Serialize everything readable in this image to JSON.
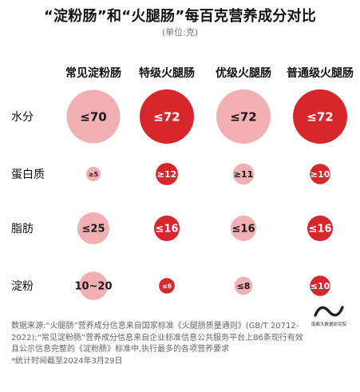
{
  "title": "“淀粉肠”和“火腿肠”每百克营养成分对比",
  "unit_label": "(单位:克)",
  "colors": {
    "light": "#f2b0b4",
    "dark": "#d7262c",
    "text_dark": "#1a1a1a",
    "text_light": "#ffffff"
  },
  "chart_data": {
    "type": "bubble-matrix",
    "columns": [
      "常见淀粉肠",
      "特级火腿肠",
      "优级火腿肠",
      "普通级火腿肠"
    ],
    "rows": [
      "水分",
      "蛋白质",
      "脂肪",
      "淀粉"
    ],
    "cells": [
      [
        {
          "label": "≤70",
          "value": 70,
          "style": "light"
        },
        {
          "label": "≤72",
          "value": 72,
          "style": "dark"
        },
        {
          "label": "≤72",
          "value": 72,
          "style": "light"
        },
        {
          "label": "≤72",
          "value": 72,
          "style": "dark"
        }
      ],
      [
        {
          "label": "≥5",
          "value": 5,
          "style": "light"
        },
        {
          "label": "≥12",
          "value": 12,
          "style": "dark"
        },
        {
          "label": "≥11",
          "value": 11,
          "style": "light"
        },
        {
          "label": "≥10",
          "value": 10,
          "style": "dark"
        }
      ],
      [
        {
          "label": "≤25",
          "value": 25,
          "style": "light"
        },
        {
          "label": "≤16",
          "value": 16,
          "style": "dark"
        },
        {
          "label": "≤16",
          "value": 16,
          "style": "light"
        },
        {
          "label": "≤16",
          "value": 16,
          "style": "dark"
        }
      ],
      [
        {
          "label": "10~20",
          "value": 20,
          "style": "light"
        },
        {
          "label": "≤6",
          "value": 6,
          "style": "dark"
        },
        {
          "label": "≤8",
          "value": 8,
          "style": "light"
        },
        {
          "label": "≤10",
          "value": 10,
          "style": "dark"
        }
      ]
    ]
  },
  "footnote": {
    "lines": [
      "数据来源:“火腿肠”营养成分信息来自国家标准《火腿肠质量通则》(GB/T 20712-2022);“常见淀粉肠”营养成分信息来自企业标准信息公共服务平台上86条现行有效且公示信息完整的《淀粉肠》标准中,执行最多的各项营养要求",
      "*统计时间截至2024年3月29日"
    ]
  },
  "logo": {
    "text": "南都大数据研究院",
    "icon": "wave-logo-icon"
  }
}
